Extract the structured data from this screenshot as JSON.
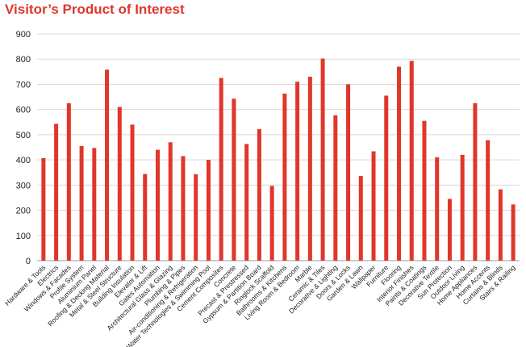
{
  "chart_data": {
    "type": "bar",
    "title": "Visitor’s Product of Interest",
    "xlabel": "",
    "ylabel": "",
    "ylim": [
      0,
      900
    ],
    "yticks": [
      0,
      100,
      200,
      300,
      400,
      500,
      600,
      700,
      800,
      900
    ],
    "grid": true,
    "bar_color": "#e0362c",
    "categories": [
      "Hardware & Tools",
      "Electrics",
      "Windows & Facades",
      "Profile System",
      "Aluminium Panel",
      "Roofing & Decking Material",
      "Metal & Steel Structure",
      "Building Insulation",
      "Elevator & Lift",
      "Gates Automation",
      "Architectural Glass & Glazing",
      "Plumbing & Pipes",
      "Air-conditioning & Refrigeration",
      "Water Technologies & Swimming Pool",
      "Cement Composites",
      "Concrete",
      "Precast & Prestressed",
      "Gypsum & Partition Board",
      "Ringlock Scaffold",
      "Bathrooms & Kitchens",
      "Living Room & Bedroom",
      "Marble",
      "Ceramic & Tiles",
      "Decorative & Lighting",
      "Doors & Locks",
      "Garden & Lawn",
      "Wallpaper",
      "Furniture",
      "Flooring",
      "Interior Finishes",
      "Paints & Coatings",
      "Decorative Textile",
      "Sun Protection",
      "Outdoor Living",
      "Home Appliances",
      "Home Accents",
      "Curtains & Blinds",
      "Stairs & Railing"
    ],
    "values": [
      407,
      543,
      625,
      455,
      447,
      758,
      610,
      540,
      344,
      440,
      470,
      415,
      343,
      400,
      725,
      643,
      463,
      522,
      297,
      663,
      710,
      730,
      802,
      577,
      700,
      336,
      434,
      655,
      770,
      793,
      555,
      410,
      245,
      420,
      625,
      478,
      283,
      223
    ]
  }
}
